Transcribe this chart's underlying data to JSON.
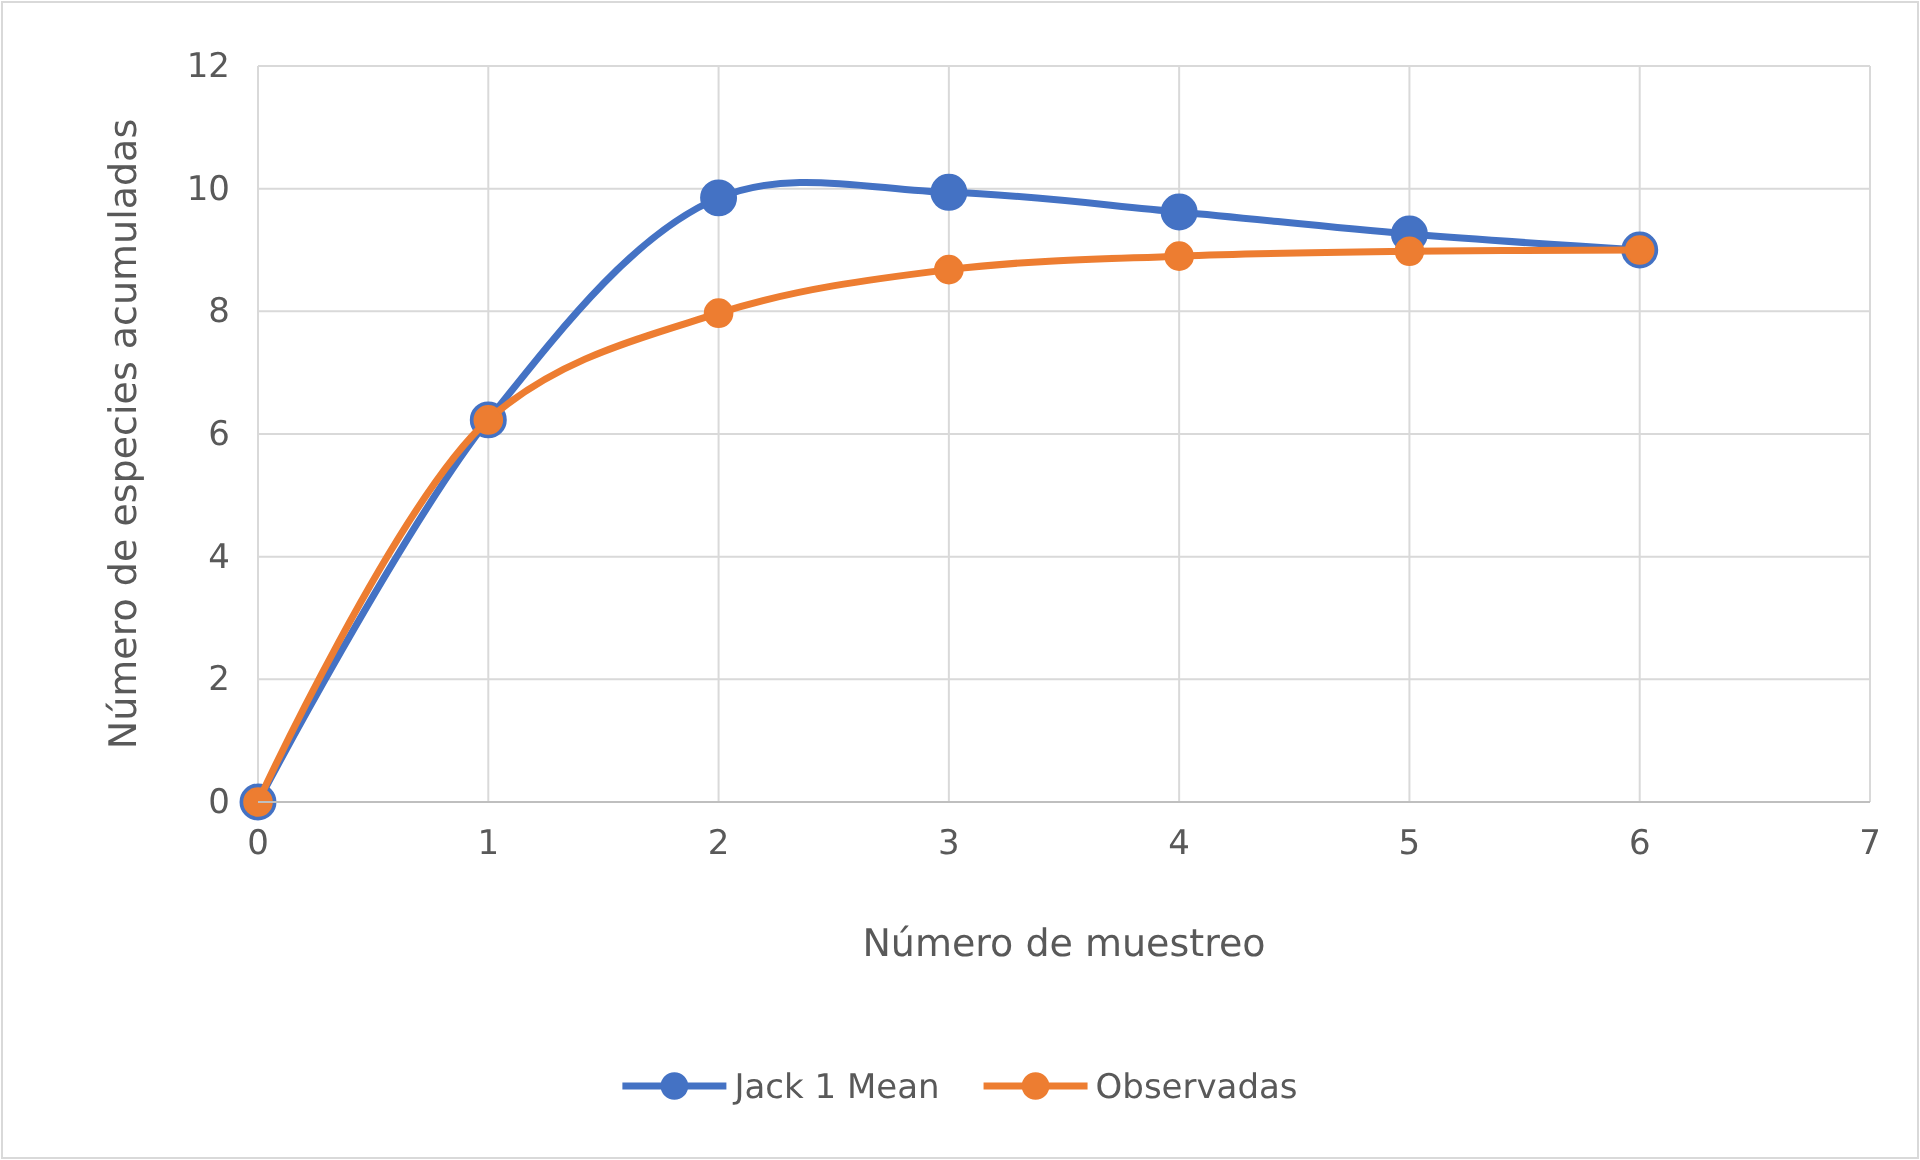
{
  "chart_data": {
    "type": "line",
    "xlabel": "Número de muestreo",
    "ylabel": "Número de especies acumuladas",
    "x": [
      0,
      1,
      2,
      3,
      4,
      5,
      6
    ],
    "series": [
      {
        "name": "Jack 1 Mean",
        "color": "#4472c4",
        "values": [
          0,
          6.23,
          9.85,
          9.94,
          9.62,
          9.26,
          9
        ]
      },
      {
        "name": "Observadas",
        "color": "#ed7d31",
        "values": [
          0,
          6.23,
          7.97,
          8.68,
          8.9,
          8.98,
          9
        ]
      }
    ],
    "xlim": [
      0,
      7
    ],
    "xticks": [
      0,
      1,
      2,
      3,
      4,
      5,
      6,
      7
    ],
    "ylim": [
      0,
      12
    ],
    "yticks": [
      0,
      2,
      4,
      6,
      8,
      10,
      12
    ],
    "grid": true,
    "legend": "bottom",
    "marker": "circle",
    "line_style": "solid"
  }
}
